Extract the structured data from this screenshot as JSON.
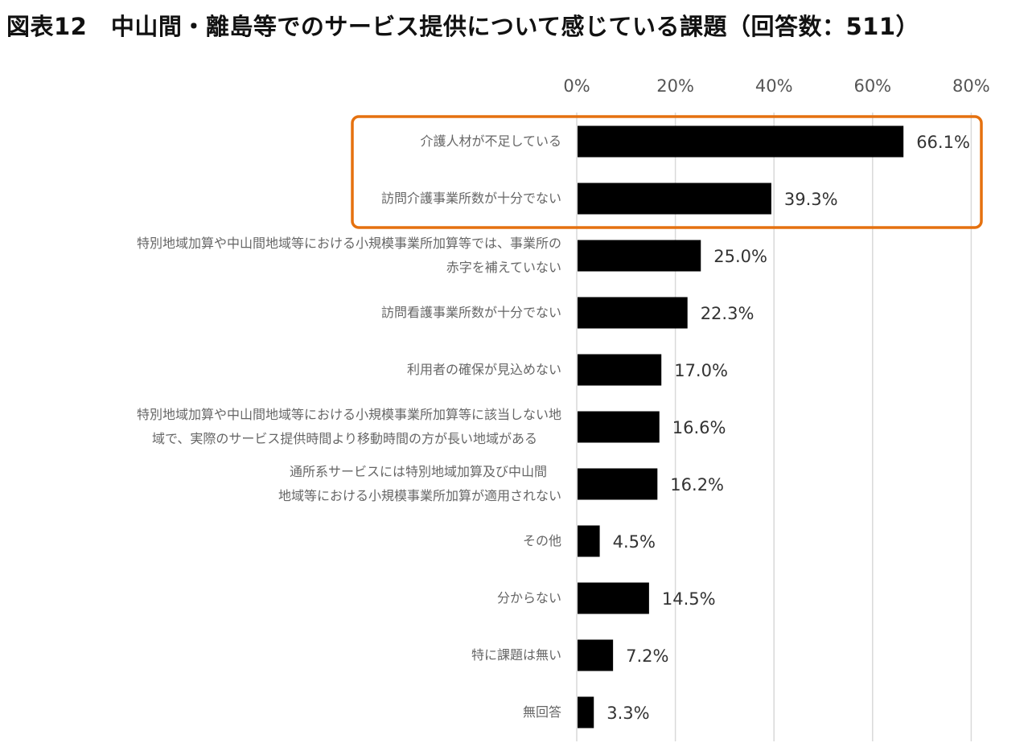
{
  "title": "図表12　中山間・離島等でのサービス提供について感じている課題（回答数：511）",
  "colors": {
    "bar": "#000000",
    "grid": "#d9d9d9",
    "highlight": "#e5710f"
  },
  "chart_data": {
    "type": "bar",
    "orientation": "horizontal",
    "title": "図表12　中山間・離島等でのサービス提供について感じている課題（回答数：511）",
    "xlabel": "",
    "ylabel": "",
    "xlim": [
      0,
      80
    ],
    "xticks": [
      0,
      20,
      40,
      60,
      80
    ],
    "xtick_labels": [
      "0%",
      "20%",
      "40%",
      "60%",
      "80%"
    ],
    "grid": true,
    "legend": "none",
    "highlighted_categories": [
      0,
      1
    ],
    "categories": [
      [
        "介護人材が不足している"
      ],
      [
        "訪問介護事業所数が十分でない"
      ],
      [
        "特別地域加算や中山間地域等における小規模事業所加算等では、事業所の",
        "赤字を補えていない"
      ],
      [
        "訪問看護事業所数が十分でない"
      ],
      [
        "利用者の確保が見込めない"
      ],
      [
        "特別地域加算や中山間地域等における小規模事業所加算等に該当しない地",
        "域で、実際のサービス提供時間より移動時間の方が長い地域がある"
      ],
      [
        "通所系サービスには特別地域加算及び中山間",
        "地域等における小規模事業所加算が適用されない"
      ],
      [
        "その他"
      ],
      [
        "分からない"
      ],
      [
        "特に課題は無い"
      ],
      [
        "無回答"
      ]
    ],
    "values": [
      66.1,
      39.3,
      25.0,
      22.3,
      17.0,
      16.6,
      16.2,
      4.5,
      14.5,
      7.2,
      3.3
    ],
    "value_labels": [
      "66.1%",
      "39.3%",
      "25.0%",
      "22.3%",
      "17.0%",
      "16.6%",
      "16.2%",
      "4.5%",
      "14.5%",
      "7.2%",
      "3.3%"
    ]
  }
}
